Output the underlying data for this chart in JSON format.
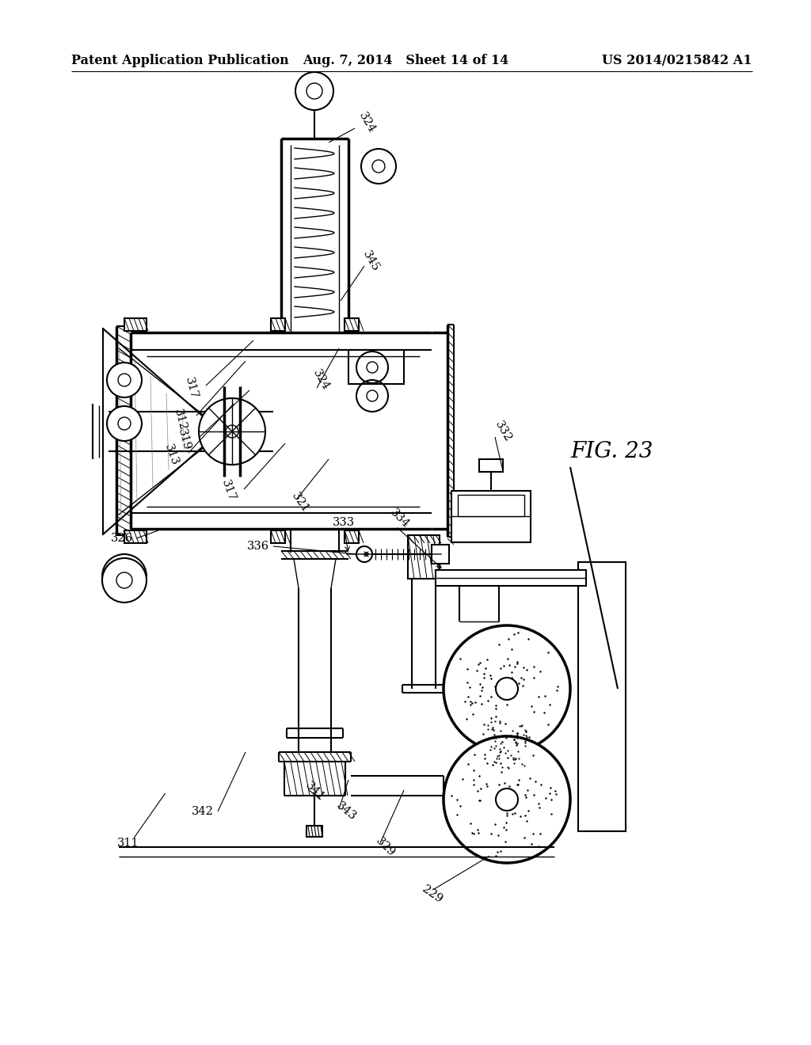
{
  "header_left": "Patent Application Publication",
  "header_mid": "Aug. 7, 2014   Sheet 14 of 14",
  "header_right": "US 2014/0215842 A1",
  "fig_label": "FIG. 23",
  "background_color": "#ffffff",
  "line_color": "#000000",
  "header_fontsize": 11.5,
  "label_fontsize": 10.5,
  "fig_label_fontsize": 20
}
